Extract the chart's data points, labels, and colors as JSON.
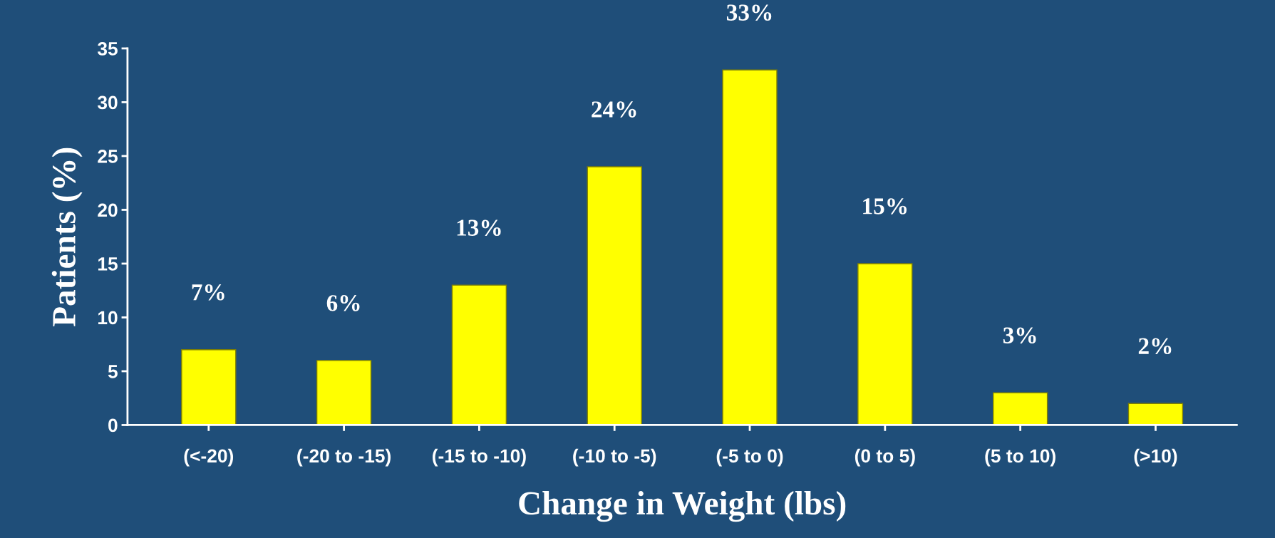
{
  "chart_data": {
    "type": "bar",
    "xlabel": "Change in Weight (lbs)",
    "ylabel": "Patients (%)",
    "categories": [
      "(<-20)",
      "(-20 to -15)",
      "(-15 to -10)",
      "(-10 to -5)",
      "(-5 to 0)",
      "(0 to 5)",
      "(5 to 10)",
      "(>10)"
    ],
    "values": [
      7,
      6,
      13,
      24,
      33,
      15,
      3,
      2
    ],
    "value_labels": [
      "7%",
      "6%",
      "13%",
      "24%",
      "33%",
      "15%",
      "3%",
      "2%"
    ],
    "color": "#ffff00",
    "ylim": [
      0,
      35
    ],
    "yticks": [
      0,
      5,
      10,
      15,
      20,
      25,
      30,
      35
    ],
    "grid": false,
    "legend": false
  }
}
